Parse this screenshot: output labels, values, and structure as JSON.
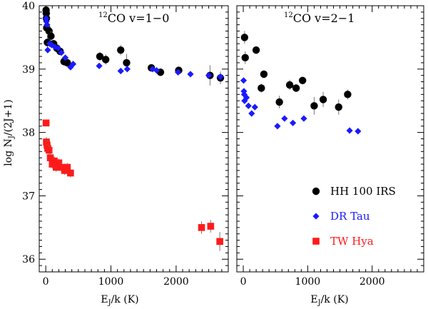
{
  "chart_data": {
    "type": "scatter",
    "ylabel": "log N",
    "ylabel_sub": "J",
    "ylabel_rest": "/(2J+1)",
    "xlabel_main": "E",
    "xlabel_sub": "J",
    "xlabel_rest": "/k (K)",
    "ylim": [
      35.8,
      40.0
    ],
    "legend_position": "lower-right",
    "legend": [
      {
        "label": "HH 100 IRS",
        "color": "#000000",
        "marker": "circle"
      },
      {
        "label": "DR Tau",
        "color": "#1a1aff",
        "marker": "diamond"
      },
      {
        "label": "TW Hya",
        "color": "#ff1a1a",
        "marker": "square"
      }
    ],
    "panels": [
      {
        "title_sup": "12",
        "title_main": "CO v=1−0",
        "xlim": [
          -100,
          2800
        ],
        "xticks": [
          0,
          1000,
          2000
        ],
        "minor_xstep": 100,
        "show_y_labels": true,
        "series": [
          {
            "legend_index": 0,
            "marker": "circle",
            "color": "#000000",
            "x": [
              5,
              8,
              10,
              15,
              25,
              50,
              80,
              120,
              170,
              220,
              280,
              330,
              830,
              920,
              1150,
              1240,
              1620,
              1760,
              2040,
              2520,
              2680
            ],
            "y": [
              39.93,
              39.88,
              39.8,
              39.65,
              39.42,
              39.6,
              39.52,
              39.4,
              39.33,
              39.28,
              39.12,
              39.1,
              39.2,
              39.15,
              39.3,
              39.1,
              39.02,
              38.95,
              38.98,
              38.9,
              38.86
            ],
            "err": [
              0.04,
              0.04,
              0.05,
              0.06,
              0.08,
              0.1,
              0.08,
              0.06,
              0.06,
              0.06,
              0.07,
              0.06,
              0.07,
              0.08,
              0.08,
              0.14,
              0.05,
              0.06,
              0.06,
              0.16,
              0.1
            ]
          },
          {
            "legend_index": 1,
            "marker": "diamond",
            "color": "#1a1aff",
            "x": [
              5,
              10,
              20,
              30,
              60,
              90,
              140,
              190,
              240,
              300,
              380,
              420,
              820,
              1150,
              1250,
              1640,
              1700,
              2030,
              2220,
              2500,
              2680
            ],
            "y": [
              39.8,
              39.75,
              39.7,
              39.3,
              39.4,
              39.38,
              39.35,
              39.33,
              39.26,
              39.18,
              39.03,
              39.08,
              39.05,
              38.97,
              39.0,
              39.0,
              38.98,
              38.95,
              38.92,
              38.9,
              38.88
            ],
            "err": []
          },
          {
            "legend_index": 2,
            "marker": "square",
            "color": "#ff1a1a",
            "x": [
              5,
              10,
              20,
              30,
              50,
              70,
              100,
              130,
              160,
              200,
              240,
              290,
              330,
              380,
              2390,
              2530,
              2670
            ],
            "y": [
              38.15,
              37.85,
              37.8,
              37.75,
              37.72,
              37.6,
              37.5,
              37.55,
              37.45,
              37.52,
              37.45,
              37.4,
              37.45,
              37.36,
              36.5,
              36.52,
              36.28
            ],
            "err": [
              0,
              0.08,
              0.07,
              0.07,
              0.07,
              0.07,
              0.07,
              0.07,
              0.07,
              0.07,
              0.07,
              0.07,
              0.07,
              0.07,
              0.1,
              0.1,
              0.15
            ]
          }
        ]
      },
      {
        "title_sup": "12",
        "title_main": "CO v=2−1",
        "xlim": [
          -100,
          2800
        ],
        "xticks": [
          0,
          1000,
          2000
        ],
        "minor_xstep": 100,
        "show_y_labels": false,
        "series": [
          {
            "legend_index": 0,
            "marker": "circle",
            "color": "#000000",
            "x": [
              20,
              30,
              200,
              280,
              320,
              560,
              720,
              820,
              920,
              1100,
              1240,
              1480,
              1620
            ],
            "y": [
              39.5,
              39.18,
              39.3,
              38.7,
              38.92,
              38.48,
              38.75,
              38.7,
              38.82,
              38.42,
              38.52,
              38.4,
              38.6
            ],
            "err": [
              0.1,
              0.1,
              0.06,
              0.07,
              0.06,
              0.1,
              0.08,
              0.06,
              0.06,
              0.14,
              0.12,
              0.12,
              0.08
            ]
          },
          {
            "legend_index": 1,
            "marker": "diamond",
            "color": "#1a1aff",
            "x": [
              5,
              10,
              15,
              20,
              50,
              80,
              130,
              180,
              530,
              640,
              770,
              940,
              1650,
              1780
            ],
            "y": [
              38.82,
              38.65,
              38.6,
              38.5,
              38.55,
              38.42,
              38.3,
              38.4,
              38.1,
              38.22,
              38.15,
              38.22,
              38.03,
              38.02
            ],
            "err": []
          }
        ]
      }
    ]
  }
}
